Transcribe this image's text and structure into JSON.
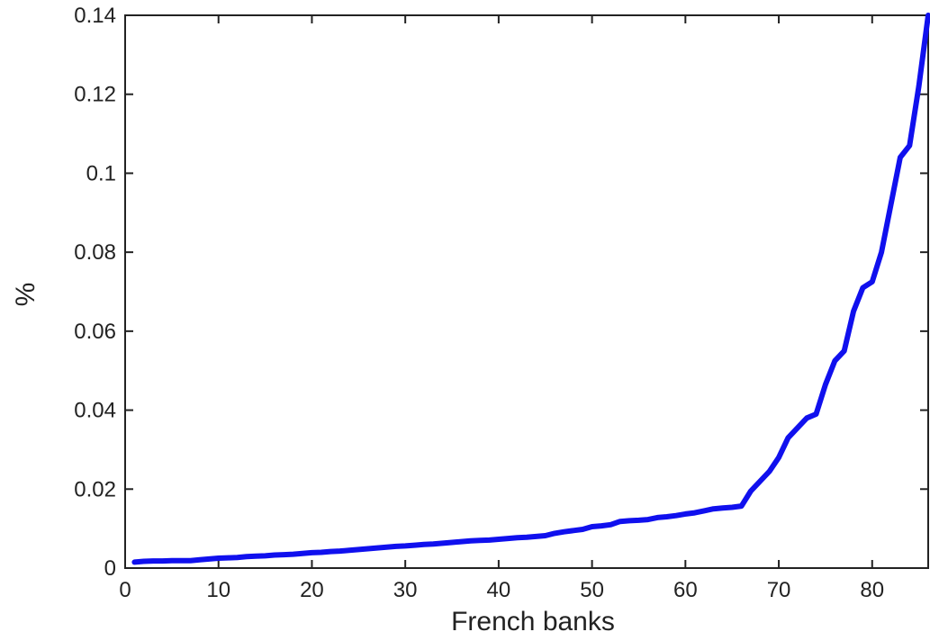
{
  "chart_data": {
    "type": "line",
    "xlabel": "French banks",
    "ylabel": "%",
    "xlim": [
      0,
      86
    ],
    "ylim": [
      0,
      0.14
    ],
    "x_ticks": [
      "0",
      "10",
      "20",
      "30",
      "40",
      "50",
      "60",
      "70",
      "80"
    ],
    "y_ticks": [
      "0",
      "0.02",
      "0.04",
      "0.06",
      "0.08",
      "0.1",
      "0.12",
      "0.14"
    ],
    "grid": false,
    "line_color": "#1010ee",
    "series": [
      {
        "x": [
          1,
          2,
          3,
          4,
          5,
          6,
          7,
          8,
          9,
          10,
          11,
          12,
          13,
          14,
          15,
          16,
          17,
          18,
          19,
          20,
          21,
          22,
          23,
          24,
          25,
          26,
          27,
          28,
          29,
          30,
          31,
          32,
          33,
          34,
          35,
          36,
          37,
          38,
          39,
          40,
          41,
          42,
          43,
          44,
          45,
          46,
          47,
          48,
          49,
          50,
          51,
          52,
          53,
          54,
          55,
          56,
          57,
          58,
          59,
          60,
          61,
          62,
          63,
          64,
          65,
          66,
          67,
          68,
          69,
          70,
          71,
          72,
          73,
          74,
          75,
          76,
          77,
          78,
          79,
          80,
          81,
          82,
          83,
          84,
          85,
          86
        ],
        "values": [
          0.0015,
          0.0017,
          0.0018,
          0.0018,
          0.0019,
          0.0019,
          0.0019,
          0.0021,
          0.0023,
          0.0025,
          0.0026,
          0.0027,
          0.0029,
          0.003,
          0.0031,
          0.0033,
          0.0034,
          0.0035,
          0.0037,
          0.0039,
          0.004,
          0.0042,
          0.0043,
          0.0045,
          0.0047,
          0.0049,
          0.0051,
          0.0053,
          0.0055,
          0.0056,
          0.0058,
          0.006,
          0.0061,
          0.0063,
          0.0065,
          0.0067,
          0.0069,
          0.007,
          0.0071,
          0.0073,
          0.0075,
          0.0077,
          0.0078,
          0.008,
          0.0082,
          0.0088,
          0.0092,
          0.0095,
          0.0098,
          0.0105,
          0.0107,
          0.011,
          0.0118,
          0.012,
          0.0121,
          0.0123,
          0.0128,
          0.013,
          0.0133,
          0.0137,
          0.014,
          0.0145,
          0.015,
          0.0152,
          0.0154,
          0.0157,
          0.0195,
          0.022,
          0.0245,
          0.028,
          0.033,
          0.0355,
          0.038,
          0.039,
          0.0465,
          0.0525,
          0.055,
          0.065,
          0.071,
          0.0725,
          0.08,
          0.092,
          0.104,
          0.107,
          0.122,
          0.14
        ]
      }
    ]
  }
}
